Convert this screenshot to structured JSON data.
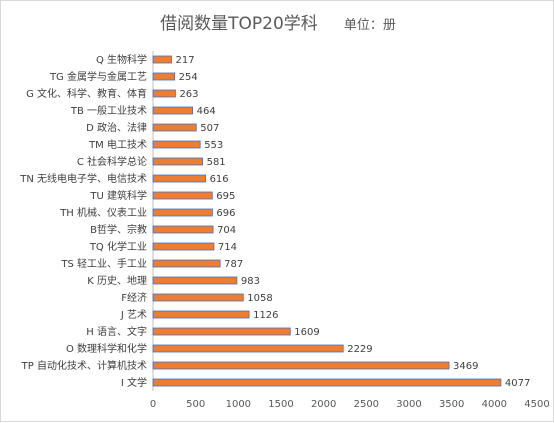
{
  "chart_data": {
    "type": "bar",
    "orientation": "horizontal",
    "title": "借阅数量TOP20学科",
    "unit_label": "单位：册",
    "categories": [
      "Q 生物科学",
      "TG 金属学与金属工艺",
      "G 文化、科学、教育、体育",
      "TB 一般工业技术",
      "D 政治、法律",
      "TM 电工技术",
      "C 社会科学总论",
      "TN 无线电电子学、电信技术",
      "TU 建筑科学",
      "TH 机械、仪表工业",
      "B哲学、宗教",
      "TQ 化学工业",
      "TS 轻工业、手工业",
      "K 历史、地理",
      "F经济",
      "J 艺术",
      "H 语言、文字",
      "O 数理科学和化学",
      "TP 自动化技术、计算机技术",
      "I 文学"
    ],
    "values": [
      217,
      254,
      263,
      464,
      507,
      553,
      581,
      616,
      695,
      696,
      704,
      714,
      787,
      983,
      1058,
      1126,
      1609,
      2229,
      3469,
      4077
    ],
    "xlim": [
      0,
      4500
    ],
    "xticks": [
      0,
      500,
      1000,
      1500,
      2000,
      2500,
      3000,
      3500,
      4000,
      4500
    ],
    "grid": false,
    "bar_color": "#ed7d31"
  }
}
